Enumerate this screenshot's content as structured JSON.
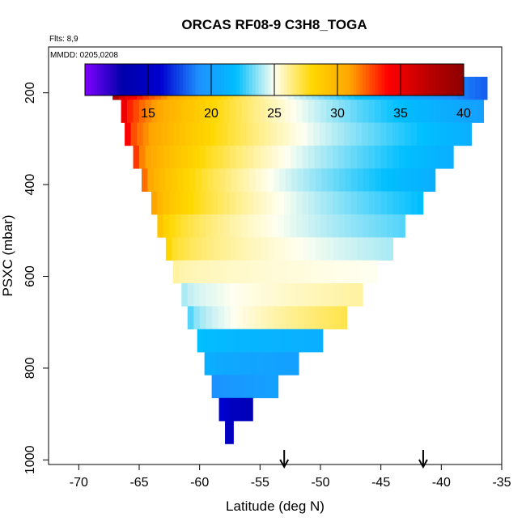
{
  "chart_data": {
    "type": "heatmap",
    "title": "ORCAS RF08-9 C3H8_TOGA",
    "annotations": {
      "flights": "Flts: 8,9",
      "dates": "MMDD: 0205,0208"
    },
    "xlabel": "Latitude (deg N)",
    "ylabel": "PSXC (mbar)",
    "xlim": [
      -72.5,
      -35
    ],
    "ylim": [
      1010,
      100
    ],
    "x_ticks": [
      -70,
      -65,
      -60,
      -55,
      -50,
      -45,
      -40,
      -35
    ],
    "y_ticks": [
      200,
      400,
      600,
      800,
      1000
    ],
    "colorbar": {
      "range": [
        10,
        40
      ],
      "ticks": [
        15,
        20,
        25,
        30,
        35,
        40
      ],
      "colors": [
        "#7f00ff",
        "#0000aa",
        "#0000d0",
        "#1e90ff",
        "#00bfff",
        "#fffff0",
        "#ffd700",
        "#ffa500",
        "#ff0000",
        "#c00000",
        "#8b0000"
      ]
    },
    "arrows_x": [
      -53,
      -41.5
    ],
    "rows": [
      {
        "p": 190,
        "x0": -67.2,
        "x1": -36.2,
        "v_left": 38,
        "v_right": 18
      },
      {
        "p": 240,
        "x0": -66.5,
        "x1": -36.5,
        "v_left": 35,
        "v_right": 20
      },
      {
        "p": 290,
        "x0": -66.2,
        "x1": -37.5,
        "v_left": 34,
        "v_right": 21
      },
      {
        "p": 340,
        "x0": -65.5,
        "x1": -39.0,
        "v_left": 33,
        "v_right": 21
      },
      {
        "p": 390,
        "x0": -64.8,
        "x1": -40.5,
        "v_left": 32,
        "v_right": 21
      },
      {
        "p": 440,
        "x0": -64.0,
        "x1": -41.5,
        "v_left": 31,
        "v_right": 22
      },
      {
        "p": 490,
        "x0": -63.5,
        "x1": -43.0,
        "v_left": 29,
        "v_right": 23
      },
      {
        "p": 540,
        "x0": -62.8,
        "x1": -44.0,
        "v_left": 28,
        "v_right": 24
      },
      {
        "p": 590,
        "x0": -62.2,
        "x1": -45.3,
        "v_left": 26,
        "v_right": 25
      },
      {
        "p": 640,
        "x0": -61.5,
        "x1": -46.5,
        "v_left": 24,
        "v_right": 26
      },
      {
        "p": 690,
        "x0": -61.0,
        "x1": -47.8,
        "v_left": 23,
        "v_right": 27
      },
      {
        "p": 740,
        "x0": -60.2,
        "x1": -49.8,
        "v_left": 22,
        "v_right": 21
      },
      {
        "p": 790,
        "x0": -59.6,
        "x1": -51.8,
        "v_left": 21,
        "v_right": 20
      },
      {
        "p": 840,
        "x0": -59.0,
        "x1": -53.5,
        "v_left": 19,
        "v_right": 20
      },
      {
        "p": 890,
        "x0": -58.4,
        "x1": -55.6,
        "v_left": 16,
        "v_right": 14
      },
      {
        "p": 940,
        "x0": -57.9,
        "x1": -57.2,
        "v_left": 15,
        "v_right": 11
      }
    ]
  }
}
